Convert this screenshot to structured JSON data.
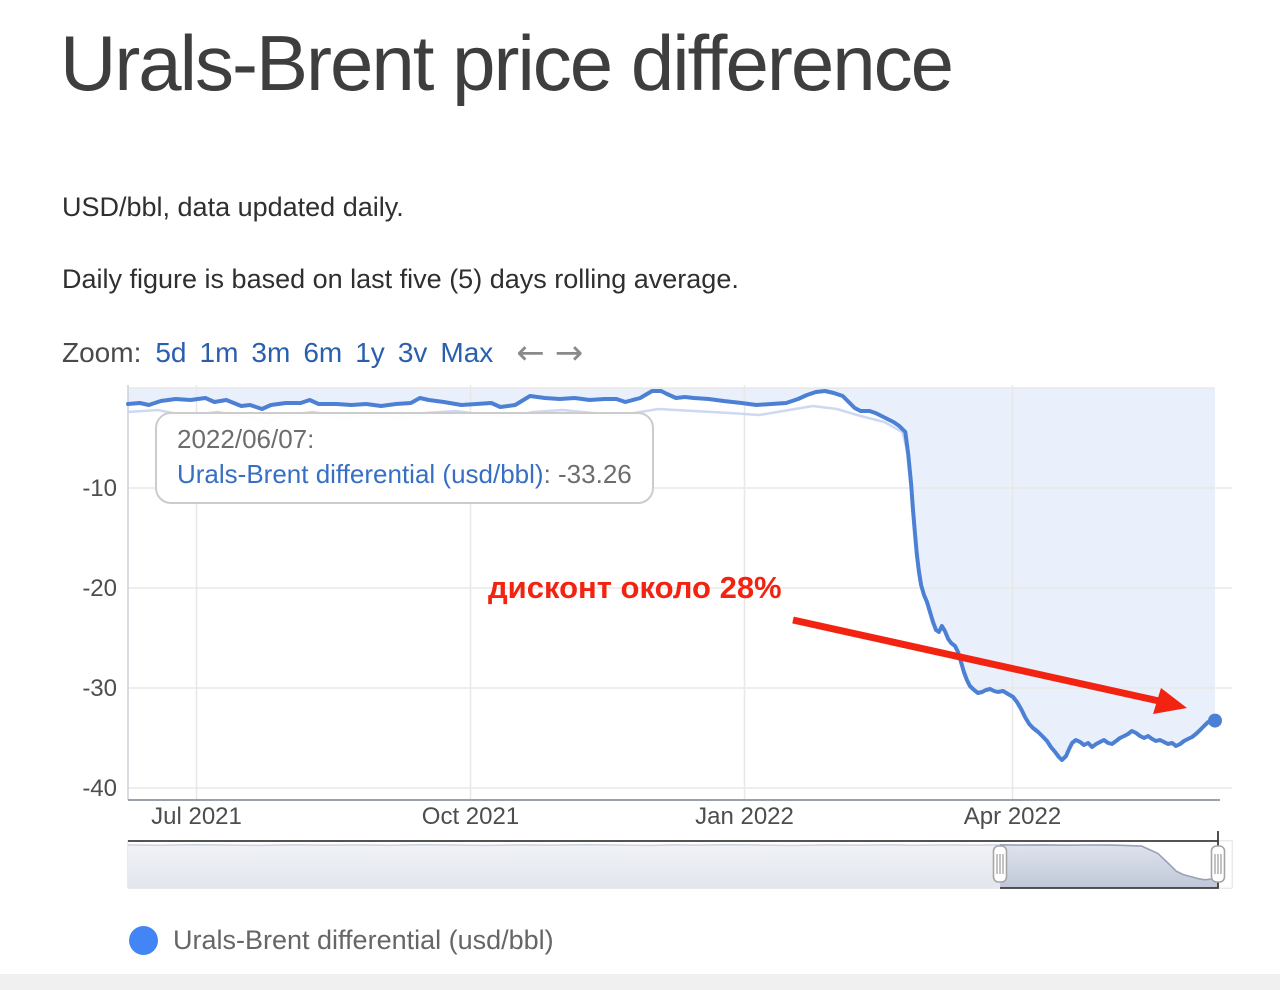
{
  "page": {
    "title": "Urals-Brent price difference",
    "subtitle1": "USD/bbl, data updated daily.",
    "subtitle2": "Daily figure is based on last five (5) days rolling average."
  },
  "zoom_bar": {
    "label": "Zoom:",
    "ranges": [
      "5d",
      "1m",
      "3m",
      "6m",
      "1y",
      "3v",
      "Max"
    ],
    "prev_arrow": "←",
    "next_arrow": "→"
  },
  "tooltip": {
    "date": "2022/06/07:",
    "series": "Urals-Brent differential (usd/bbl)",
    "value": ": -33.26"
  },
  "annotation": {
    "text": "дисконт около 28%",
    "color": "#f22310"
  },
  "legend": {
    "label": "Urals-Brent differential (usd/bbl)",
    "marker_color": "#4285f4"
  },
  "colors": {
    "line": "#4b80d5",
    "area_fill": "#e9effb",
    "shadow_line": "#c9d4f2",
    "grid": "#e8e8e8",
    "axis_y": "#ccd0d6",
    "axis_x": "#9aa1ab",
    "tick_text": "#4d4d4d",
    "nav_line": "#99a2b8",
    "nav_fill_top": "#dfe3ed",
    "nav_fill_bottom": "#bfc7d8",
    "nav_outline": "#3c3c3c",
    "annotation_red": "#f22310"
  },
  "chart_data": {
    "type": "area",
    "title": "Urals-Brent price difference",
    "xlabel": "",
    "ylabel": "usd/bbl",
    "grid": true,
    "legend_position": "bottom",
    "x_start_date": "2021-06-08",
    "x_end_date": "2022-06-07",
    "x_range_days": 365,
    "ylim": [
      -41,
      0.5
    ],
    "y_ticks": [
      -10,
      -20,
      -30,
      -40
    ],
    "x_ticks": [
      "Jul 2021",
      "Oct 2021",
      "Jan 2022",
      "Apr 2022"
    ],
    "x_tick_days": [
      23,
      115,
      207,
      297
    ],
    "last_point": {
      "date": "2022/06/07",
      "value": -33.26
    },
    "series": [
      {
        "name": "Urals-Brent differential (usd/bbl)",
        "points": [
          [
            0,
            -1.6
          ],
          [
            4,
            -1.5
          ],
          [
            7,
            -1.7
          ],
          [
            11,
            -1.3
          ],
          [
            16,
            -1.1
          ],
          [
            21,
            -1.2
          ],
          [
            26,
            -1.0
          ],
          [
            29,
            -1.4
          ],
          [
            33,
            -1.2
          ],
          [
            38,
            -1.8
          ],
          [
            41,
            -1.7
          ],
          [
            45,
            -2.1
          ],
          [
            48,
            -1.7
          ],
          [
            53,
            -1.5
          ],
          [
            58,
            -1.5
          ],
          [
            61,
            -1.2
          ],
          [
            64,
            -1.6
          ],
          [
            70,
            -1.6
          ],
          [
            75,
            -1.7
          ],
          [
            80,
            -1.6
          ],
          [
            85,
            -1.8
          ],
          [
            90,
            -1.6
          ],
          [
            95,
            -1.5
          ],
          [
            98,
            -1.0
          ],
          [
            101,
            -1.2
          ],
          [
            106,
            -1.4
          ],
          [
            112,
            -1.7
          ],
          [
            117,
            -1.6
          ],
          [
            122,
            -1.5
          ],
          [
            125,
            -1.9
          ],
          [
            130,
            -1.7
          ],
          [
            135,
            -0.8
          ],
          [
            140,
            -1.0
          ],
          [
            145,
            -1.1
          ],
          [
            150,
            -1.0
          ],
          [
            155,
            -1.2
          ],
          [
            160,
            -1.1
          ],
          [
            164,
            -1.1
          ],
          [
            167,
            -1.4
          ],
          [
            172,
            -1.0
          ],
          [
            176,
            -0.3
          ],
          [
            179,
            -0.3
          ],
          [
            181,
            -0.6
          ],
          [
            184,
            -1.0
          ],
          [
            187,
            -0.9
          ],
          [
            190,
            -1.0
          ],
          [
            195,
            -1.1
          ],
          [
            200,
            -1.3
          ],
          [
            206,
            -1.5
          ],
          [
            211,
            -1.7
          ],
          [
            216,
            -1.6
          ],
          [
            221,
            -1.5
          ],
          [
            225,
            -1.1
          ],
          [
            228,
            -0.7
          ],
          [
            231,
            -0.4
          ],
          [
            234,
            -0.3
          ],
          [
            237,
            -0.5
          ],
          [
            240,
            -0.8
          ],
          [
            242,
            -1.4
          ],
          [
            244,
            -2.0
          ],
          [
            246,
            -2.3
          ],
          [
            249,
            -2.3
          ],
          [
            251,
            -2.5
          ],
          [
            253,
            -2.8
          ],
          [
            255,
            -3.1
          ],
          [
            257,
            -3.4
          ],
          [
            259,
            -3.8
          ],
          [
            261,
            -4.4
          ],
          [
            262,
            -6.7
          ],
          [
            263,
            -9.7
          ],
          [
            263.6,
            -12.2
          ],
          [
            264.3,
            -14.7
          ],
          [
            264.9,
            -16.7
          ],
          [
            265.6,
            -18.4
          ],
          [
            266.3,
            -19.7
          ],
          [
            267.3,
            -20.7
          ],
          [
            268.3,
            -21.4
          ],
          [
            269.3,
            -22.4
          ],
          [
            270.3,
            -23.4
          ],
          [
            271.3,
            -24.2
          ],
          [
            272.3,
            -24.4
          ],
          [
            273.3,
            -23.8
          ],
          [
            274.3,
            -24.3
          ],
          [
            275.4,
            -25.1
          ],
          [
            276.4,
            -25.5
          ],
          [
            277.7,
            -25.8
          ],
          [
            278.7,
            -26.4
          ],
          [
            279.7,
            -27.4
          ],
          [
            280.7,
            -28.4
          ],
          [
            281.7,
            -29.2
          ],
          [
            282.7,
            -29.8
          ],
          [
            284.1,
            -30.2
          ],
          [
            285.4,
            -30.5
          ],
          [
            286.8,
            -30.4
          ],
          [
            288.1,
            -30.2
          ],
          [
            289.5,
            -30.1
          ],
          [
            290.8,
            -30.3
          ],
          [
            292.1,
            -30.4
          ],
          [
            293.8,
            -30.3
          ],
          [
            295.5,
            -30.6
          ],
          [
            297.2,
            -30.9
          ],
          [
            298.5,
            -31.4
          ],
          [
            299.9,
            -32.1
          ],
          [
            301.2,
            -32.9
          ],
          [
            302.6,
            -33.6
          ],
          [
            303.9,
            -34.0
          ],
          [
            305.6,
            -34.4
          ],
          [
            307.3,
            -34.9
          ],
          [
            308.6,
            -35.3
          ],
          [
            309.9,
            -35.9
          ],
          [
            311.3,
            -36.4
          ],
          [
            312.6,
            -36.9
          ],
          [
            313.6,
            -37.2
          ],
          [
            315,
            -36.8
          ],
          [
            316,
            -36.1
          ],
          [
            317,
            -35.5
          ],
          [
            318.3,
            -35.2
          ],
          [
            319.7,
            -35.4
          ],
          [
            321,
            -35.7
          ],
          [
            322.4,
            -35.5
          ],
          [
            323.7,
            -35.9
          ],
          [
            325.1,
            -35.6
          ],
          [
            326.4,
            -35.4
          ],
          [
            327.7,
            -35.2
          ],
          [
            329.1,
            -35.5
          ],
          [
            330.4,
            -35.6
          ],
          [
            331.8,
            -35.3
          ],
          [
            333.1,
            -35.0
          ],
          [
            334.5,
            -34.8
          ],
          [
            335.8,
            -34.6
          ],
          [
            337.1,
            -34.3
          ],
          [
            338.5,
            -34.5
          ],
          [
            339.8,
            -34.8
          ],
          [
            341.2,
            -35.0
          ],
          [
            342.5,
            -34.8
          ],
          [
            343.9,
            -35.1
          ],
          [
            345.2,
            -35.3
          ],
          [
            346.5,
            -35.2
          ],
          [
            347.9,
            -35.4
          ],
          [
            349.2,
            -35.6
          ],
          [
            350.6,
            -35.5
          ],
          [
            351.9,
            -35.8
          ],
          [
            353.3,
            -35.6
          ],
          [
            354.6,
            -35.3
          ],
          [
            355.9,
            -35.1
          ],
          [
            357.3,
            -34.9
          ],
          [
            358.6,
            -34.6
          ],
          [
            360,
            -34.2
          ],
          [
            361.3,
            -33.8
          ],
          [
            362.7,
            -33.4
          ],
          [
            364,
            -33.3
          ],
          [
            365,
            -33.26
          ]
        ]
      }
    ],
    "shadow_series": {
      "name": "daily (non-averaged, faint)",
      "points": [
        [
          0,
          -2.4
        ],
        [
          10,
          -2.2
        ],
        [
          20,
          -2.8
        ],
        [
          30,
          -2.4
        ],
        [
          42,
          -3.0
        ],
        [
          46,
          -3.5
        ],
        [
          52,
          -2.8
        ],
        [
          62,
          -2.4
        ],
        [
          72,
          -3.0
        ],
        [
          82,
          -2.7
        ],
        [
          92,
          -3.0
        ],
        [
          100,
          -2.5
        ],
        [
          110,
          -2.3
        ],
        [
          120,
          -2.7
        ],
        [
          128,
          -2.9
        ],
        [
          136,
          -2.4
        ],
        [
          146,
          -2.2
        ],
        [
          156,
          -2.5
        ],
        [
          166,
          -2.7
        ],
        [
          178,
          -2.1
        ],
        [
          190,
          -2.3
        ],
        [
          202,
          -2.5
        ],
        [
          212,
          -2.7
        ],
        [
          222,
          -2.2
        ],
        [
          230,
          -1.8
        ],
        [
          238,
          -2.1
        ],
        [
          246,
          -2.8
        ],
        [
          254,
          -3.4
        ],
        [
          260,
          -4.4
        ],
        [
          262,
          -6.7
        ]
      ]
    },
    "navigator": {
      "points": [
        [
          0,
          -1.8
        ],
        [
          0.03,
          -2.2
        ],
        [
          0.06,
          -1.6
        ],
        [
          0.09,
          -2.0
        ],
        [
          0.12,
          -2.3
        ],
        [
          0.15,
          -1.7
        ],
        [
          0.18,
          -2.1
        ],
        [
          0.21,
          -1.8
        ],
        [
          0.24,
          -2.2
        ],
        [
          0.27,
          -1.6
        ],
        [
          0.3,
          -2.0
        ],
        [
          0.33,
          -2.3
        ],
        [
          0.36,
          -1.8
        ],
        [
          0.39,
          -2.1
        ],
        [
          0.42,
          -1.6
        ],
        [
          0.45,
          -2.0
        ],
        [
          0.48,
          -2.3
        ],
        [
          0.5,
          -1.7
        ],
        [
          0.52,
          -2.1
        ],
        [
          0.55,
          -1.6
        ],
        [
          0.58,
          -2.0
        ],
        [
          0.61,
          -2.4
        ],
        [
          0.64,
          -1.8
        ],
        [
          0.67,
          -2.1
        ],
        [
          0.7,
          -1.7
        ],
        [
          0.72,
          -2.2
        ],
        [
          0.75,
          -1.8
        ],
        [
          0.78,
          -2.1
        ],
        [
          0.8,
          -1.7
        ],
        [
          0.82,
          -2.0
        ],
        [
          0.84,
          -1.8
        ],
        [
          0.86,
          -2.1
        ],
        [
          0.88,
          -1.9
        ],
        [
          0.9,
          -2.0
        ],
        [
          0.91,
          -2.2
        ],
        [
          0.92,
          -2.6
        ],
        [
          0.93,
          -3.0
        ],
        [
          0.945,
          -10
        ],
        [
          0.955,
          -20
        ],
        [
          0.962,
          -27
        ],
        [
          0.968,
          -30
        ],
        [
          0.975,
          -32
        ],
        [
          0.982,
          -34
        ],
        [
          0.988,
          -35
        ],
        [
          0.993,
          -34.5
        ],
        [
          1,
          -33.3
        ]
      ],
      "selected_from_fraction": 0.8,
      "selected_to_fraction": 1.0
    }
  }
}
